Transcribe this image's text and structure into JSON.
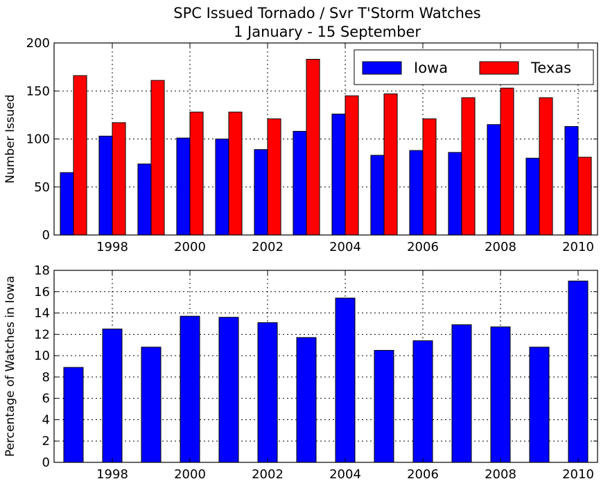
{
  "title_line1": "SPC Issued Tornado / Svr T'Storm Watches",
  "title_line2": "1 January - 15 September",
  "colors": {
    "iowa": "#0000ff",
    "texas": "#ff0000"
  },
  "chart_data": [
    {
      "type": "bar",
      "ylabel": "Number Issued",
      "ylim": [
        0,
        200
      ],
      "yticks": [
        0,
        50,
        100,
        150,
        200
      ],
      "xticks": [
        1998,
        2000,
        2002,
        2004,
        2006,
        2008,
        2010
      ],
      "grid": true,
      "legend_position": "top-right",
      "categories": [
        1997,
        1998,
        1999,
        2000,
        2001,
        2002,
        2003,
        2004,
        2005,
        2006,
        2007,
        2008,
        2009,
        2010
      ],
      "series": [
        {
          "name": "Iowa",
          "color": "#0000ff",
          "values": [
            65,
            103,
            74,
            101,
            100,
            89,
            108,
            126,
            83,
            88,
            86,
            115,
            80,
            113
          ]
        },
        {
          "name": "Texas",
          "color": "#ff0000",
          "values": [
            166,
            117,
            161,
            128,
            128,
            121,
            183,
            145,
            147,
            121,
            143,
            153,
            143,
            81
          ]
        }
      ]
    },
    {
      "type": "bar",
      "ylabel": "Percentage of Watches in Iowa",
      "ylim": [
        0,
        18
      ],
      "yticks": [
        0,
        2,
        4,
        6,
        8,
        10,
        12,
        14,
        16,
        18
      ],
      "xticks": [
        1998,
        2000,
        2002,
        2004,
        2006,
        2008,
        2010
      ],
      "grid": true,
      "categories": [
        1997,
        1998,
        1999,
        2000,
        2001,
        2002,
        2003,
        2004,
        2005,
        2006,
        2007,
        2008,
        2009,
        2010
      ],
      "series": [
        {
          "color": "#0000ff",
          "values": [
            8.9,
            12.5,
            10.8,
            13.7,
            13.6,
            13.1,
            11.7,
            15.4,
            10.5,
            11.4,
            12.9,
            12.7,
            10.8,
            17.0
          ]
        }
      ]
    }
  ]
}
